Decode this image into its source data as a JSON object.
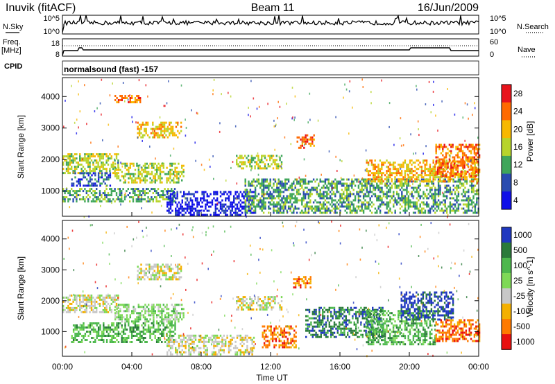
{
  "header": {
    "station": "Inuvik (fitACF)",
    "beam": "Beam 11",
    "date": "16/Jun/2009"
  },
  "panels": {
    "nsky_label": "N.Sky",
    "nsearch_label": "N.Search",
    "nsky_ticks": [
      "10^5",
      "10^0"
    ],
    "nsky_right_ticks": [
      "10^5",
      "10^0"
    ],
    "freq_label_1": "Freq.",
    "freq_label_2": "[MHz]",
    "freq_ticks": [
      "18",
      "8"
    ],
    "nave_label": "Nave",
    "nave_ticks": [
      "60",
      "0"
    ],
    "cpid_label": "CPID",
    "cpid_value": "normalsound (fast) -157"
  },
  "chart_data": [
    {
      "type": "heatmap",
      "name": "power",
      "ylabel": "Slant Range [km]",
      "yticks": [
        1000,
        2000,
        3000,
        4000
      ],
      "ylim": [
        200,
        4600
      ],
      "xticks": [
        "00:00",
        "04:00",
        "08:00",
        "12:00",
        "16:00",
        "20:00",
        "00:00"
      ],
      "xlim_hours": [
        0,
        24
      ],
      "colorbar_label": "Power [dB]",
      "colorbar_ticks": [
        "28",
        "24",
        "20",
        "16",
        "12",
        "8",
        "4"
      ],
      "colorbar_colors": [
        "#e8141c",
        "#ff6a00",
        "#f7b800",
        "#b7d42b",
        "#3fa65a",
        "#2a4cb0",
        "#1010e8"
      ],
      "bands": [
        {
          "t0": 0.0,
          "t1": 3.2,
          "r0": 1600,
          "r1": 2200,
          "level": 3
        },
        {
          "t0": 0.5,
          "t1": 2.8,
          "r0": 1200,
          "r1": 1600,
          "level": 5
        },
        {
          "t0": 0.0,
          "t1": 6.5,
          "r0": 650,
          "r1": 1100,
          "level": 4
        },
        {
          "t0": 3.0,
          "t1": 7.0,
          "r0": 1300,
          "r1": 1900,
          "level": 3
        },
        {
          "t0": 4.3,
          "t1": 6.8,
          "r0": 2700,
          "r1": 3200,
          "level": 2
        },
        {
          "t0": 3.0,
          "t1": 4.5,
          "r0": 3850,
          "r1": 4050,
          "level": 1
        },
        {
          "t0": 6.0,
          "t1": 11.0,
          "r0": 250,
          "r1": 1000,
          "level": 6
        },
        {
          "t0": 10.0,
          "t1": 12.6,
          "r0": 1700,
          "r1": 2150,
          "level": 3
        },
        {
          "t0": 10.5,
          "t1": 24.0,
          "r0": 300,
          "r1": 1400,
          "level": 4
        },
        {
          "t0": 13.5,
          "t1": 14.5,
          "r0": 2400,
          "r1": 2800,
          "level": 1
        },
        {
          "t0": 17.5,
          "t1": 24.0,
          "r0": 1300,
          "r1": 2000,
          "level": 2
        },
        {
          "t0": 21.5,
          "t1": 24.0,
          "r0": 1500,
          "r1": 2500,
          "level": 1
        }
      ]
    },
    {
      "type": "heatmap",
      "name": "velocity",
      "ylabel": "Slant Range [km]",
      "yticks": [
        1000,
        2000,
        3000,
        4000
      ],
      "ylim": [
        200,
        4600
      ],
      "xticks": [
        "00:00",
        "04:00",
        "08:00",
        "12:00",
        "16:00",
        "20:00",
        "00:00"
      ],
      "xlim_hours": [
        0,
        24
      ],
      "xlabel": "Time UT",
      "colorbar_label": "Velocity [m s^-1]",
      "colorbar_ticks": [
        "1000",
        "500",
        "100",
        "25",
        "-25",
        "-100",
        "-500",
        "-1000"
      ],
      "colorbar_colors": [
        "#2038c0",
        "#2a7a3a",
        "#4db84d",
        "#7ed957",
        "#c8c8c8",
        "#f4b000",
        "#ff7a00",
        "#e81010"
      ],
      "bands": [
        {
          "t0": 0.0,
          "t1": 3.2,
          "r0": 1600,
          "r1": 2200,
          "level": 4
        },
        {
          "t0": 0.5,
          "t1": 6.5,
          "r0": 650,
          "r1": 1300,
          "level": 2
        },
        {
          "t0": 3.0,
          "t1": 7.0,
          "r0": 1300,
          "r1": 1900,
          "level": 3
        },
        {
          "t0": 4.3,
          "t1": 6.8,
          "r0": 2700,
          "r1": 3200,
          "level": 4
        },
        {
          "t0": 6.0,
          "t1": 11.0,
          "r0": 250,
          "r1": 900,
          "level": 4
        },
        {
          "t0": 10.0,
          "t1": 12.6,
          "r0": 1700,
          "r1": 2150,
          "level": 4
        },
        {
          "t0": 11.5,
          "t1": 13.5,
          "r0": 500,
          "r1": 1200,
          "level": 6
        },
        {
          "t0": 13.3,
          "t1": 14.3,
          "r0": 2400,
          "r1": 2800,
          "level": 6
        },
        {
          "t0": 14.0,
          "t1": 18.5,
          "r0": 800,
          "r1": 1800,
          "level": 1
        },
        {
          "t0": 17.5,
          "t1": 21.5,
          "r0": 600,
          "r1": 1700,
          "level": 2
        },
        {
          "t0": 19.5,
          "t1": 22.5,
          "r0": 1400,
          "r1": 2300,
          "level": 0
        },
        {
          "t0": 21.5,
          "t1": 24.0,
          "r0": 700,
          "r1": 1400,
          "level": 6
        }
      ]
    }
  ]
}
